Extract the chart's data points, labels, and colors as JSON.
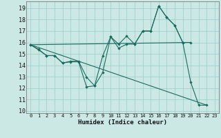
{
  "xlabel": "Humidex (Indice chaleur)",
  "bg_color": "#cce8e4",
  "grid_color": "#99ccc8",
  "line_color": "#1a6b5e",
  "xlim": [
    -0.5,
    23.5
  ],
  "ylim": [
    9.8,
    19.6
  ],
  "yticks": [
    10,
    11,
    12,
    13,
    14,
    15,
    16,
    17,
    18,
    19
  ],
  "xticks": [
    0,
    1,
    2,
    3,
    4,
    5,
    6,
    7,
    8,
    9,
    10,
    11,
    12,
    13,
    14,
    15,
    16,
    17,
    18,
    19,
    20,
    21,
    22,
    23
  ],
  "series_zigzag1": {
    "x": [
      0,
      1,
      2,
      3,
      4,
      5,
      6,
      7,
      8,
      9,
      10,
      11,
      12,
      13,
      14,
      15,
      16,
      17,
      18,
      19,
      20,
      21,
      22
    ],
    "y": [
      15.8,
      15.4,
      14.85,
      14.85,
      14.2,
      14.3,
      14.3,
      12.1,
      12.2,
      13.35,
      16.5,
      15.85,
      16.55,
      15.85,
      17.0,
      17.0,
      19.2,
      18.2,
      17.5,
      16.0,
      12.5,
      10.5,
      10.5
    ]
  },
  "series_zigzag2": {
    "x": [
      0,
      1,
      2,
      3,
      4,
      5,
      6,
      7,
      8,
      9,
      10,
      11,
      12,
      13,
      14,
      15,
      16,
      17,
      18,
      19,
      20
    ],
    "y": [
      15.8,
      15.35,
      14.85,
      14.85,
      14.2,
      14.35,
      14.35,
      12.95,
      12.2,
      14.8,
      16.5,
      15.5,
      15.85,
      15.85,
      17.0,
      17.0,
      19.2,
      18.2,
      17.5,
      16.0,
      16.0
    ]
  },
  "series_flat": {
    "x": [
      0,
      20
    ],
    "y": [
      15.8,
      16.0
    ]
  },
  "series_diag": {
    "x": [
      0,
      22
    ],
    "y": [
      15.8,
      10.5
    ]
  }
}
